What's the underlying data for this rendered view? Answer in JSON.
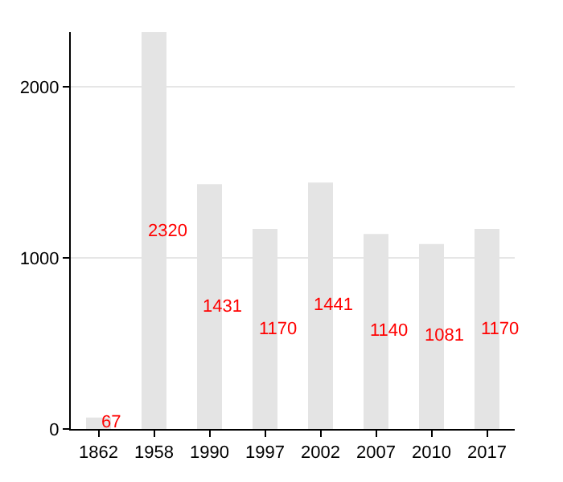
{
  "chart_data": {
    "type": "bar",
    "categories": [
      "1862",
      "1958",
      "1990",
      "1997",
      "2002",
      "2007",
      "2010",
      "2017"
    ],
    "values": [
      67,
      2320,
      1431,
      1170,
      1441,
      1140,
      1081,
      1170
    ],
    "color": "#e4e4e4",
    "ylim": [
      0,
      2320
    ],
    "yticks": [
      0,
      1000,
      2000
    ],
    "grid": "y",
    "data_labels": true
  }
}
